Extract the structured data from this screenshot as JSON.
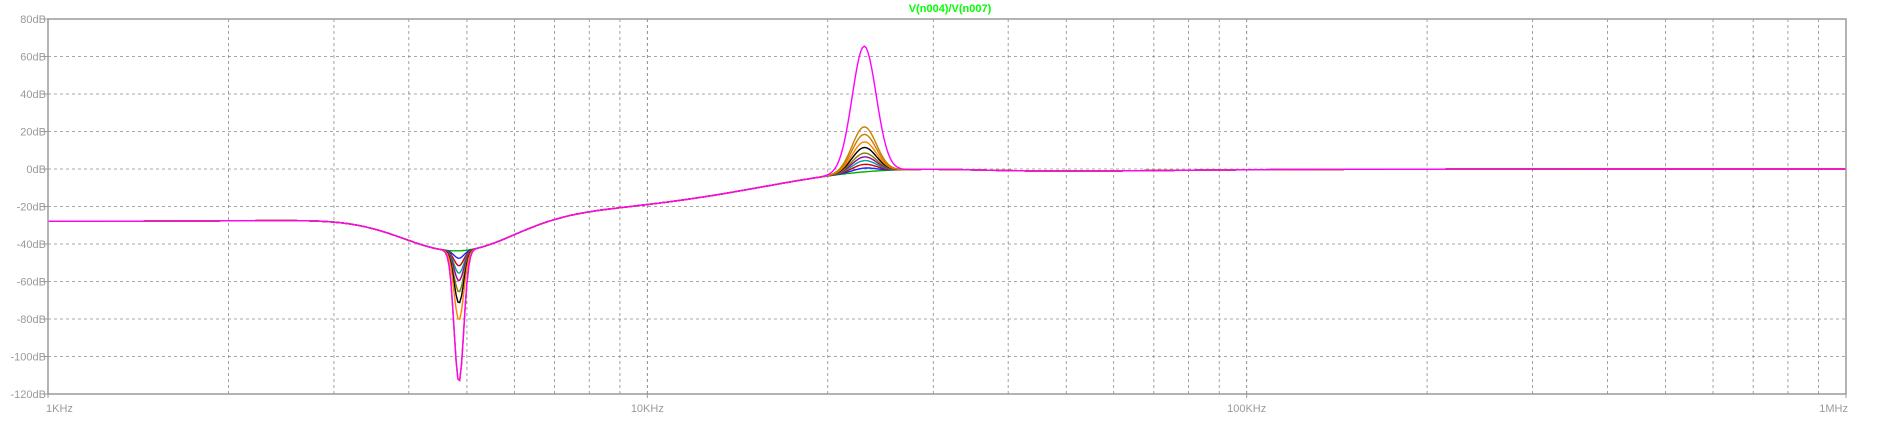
{
  "chart_data": {
    "type": "line",
    "title": "V(n004)/V(n007)",
    "title_color": "#00ff00",
    "xscale": "log",
    "xlim": [
      1000,
      1000000
    ],
    "ylim": [
      -120,
      80
    ],
    "grid": true,
    "x_tick_labels": [
      {
        "value": 1000,
        "label": "1KHz"
      },
      {
        "value": 10000,
        "label": "10KHz"
      },
      {
        "value": 100000,
        "label": "100KHz"
      },
      {
        "value": 1000000,
        "label": "1MHz"
      }
    ],
    "y_tick_labels": [
      {
        "value": 80,
        "label": "80dB"
      },
      {
        "value": 60,
        "label": "60dB"
      },
      {
        "value": 40,
        "label": "40dB"
      },
      {
        "value": 20,
        "label": "20dB"
      },
      {
        "value": 0,
        "label": "0dB"
      },
      {
        "value": -20,
        "label": "-20dB"
      },
      {
        "value": -40,
        "label": "-40dB"
      },
      {
        "value": -60,
        "label": "-60dB"
      },
      {
        "value": -80,
        "label": "-80dB"
      },
      {
        "value": -100,
        "label": "-100dB"
      },
      {
        "value": -120,
        "label": "-120dB"
      }
    ],
    "sweep": {
      "notch_frequency_hz": 4850,
      "peak_frequency_hz": 23000,
      "low_frequency_level_db": -28,
      "high_frequency_level_db": 0,
      "notch_depth_db": [
        -48,
        -52,
        -56,
        -60,
        -64,
        -70,
        -76,
        -85,
        -118
      ],
      "peak_height_db": [
        6,
        8,
        10,
        12,
        14,
        16,
        19,
        22,
        26,
        30,
        73
      ],
      "notch_deepest_color": "#c88000",
      "peak_highest_color": "#ff00ff"
    },
    "series_colors": [
      "#00b000",
      "#1f1fff",
      "#d00000",
      "#00a0a0",
      "#a000a0",
      "#808000",
      "#000000",
      "#ff7f00",
      "#7f7fff",
      "#007f3f",
      "#bf3f7f",
      "#3f7fbf",
      "#bfbf00",
      "#7f007f",
      "#00bfbf",
      "#ff00ff"
    ]
  }
}
